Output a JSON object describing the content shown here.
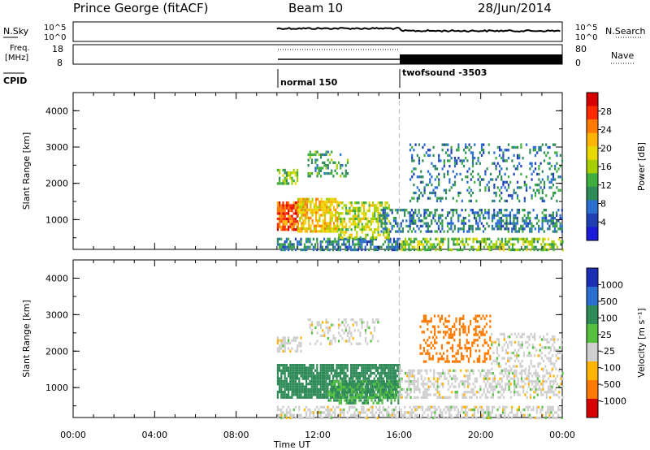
{
  "header": {
    "station": "Prince George (fitACF)",
    "beam": "Beam 10",
    "date": "28/Jun/2014"
  },
  "top_panels": {
    "nsky_label": "N.Sky",
    "nsearch_label": "N.Search",
    "noise_ticks_left": [
      "10^5",
      "10^0"
    ],
    "noise_ticks_right": [
      "10^5",
      "10^0"
    ],
    "freq_label": "Freq.",
    "freq_unit": "[MHz]",
    "freq_ticks": [
      "18",
      "8"
    ],
    "nave_label": "Nave",
    "nave_ticks": [
      "80",
      "0"
    ],
    "cpid_label": "CPID",
    "cpid_modes": [
      {
        "name": "normal 150",
        "start_hour": 10.0
      },
      {
        "name": "twofsound -3503",
        "start_hour": 16.0
      }
    ]
  },
  "colorbars": {
    "power": {
      "title": "Power [dB]",
      "ticks": [
        "28",
        "24",
        "20",
        "16",
        "12",
        "8",
        "4"
      ],
      "colors": [
        "#d60000",
        "#ff2a00",
        "#ff7a00",
        "#ffb400",
        "#e8d800",
        "#a8d000",
        "#3fae3f",
        "#2e8b57",
        "#2a6fd0",
        "#1f3fb3",
        "#1a1ad8"
      ]
    },
    "velocity": {
      "title": "Velocity [m s⁻¹]",
      "ticks": [
        "1000",
        "500",
        "100",
        "25",
        "-25",
        "-100",
        "-500",
        "-1000"
      ],
      "colors": [
        "#1c2fb4",
        "#2a6fd0",
        "#2e8b57",
        "#55c040",
        "#cfcfcf",
        "#ffb400",
        "#ff7a00",
        "#d60000"
      ]
    }
  },
  "chart_data": [
    {
      "type": "heatmap",
      "panel": "power",
      "ylabel": "Slant Range [km]",
      "xlabel": "",
      "ylim": [
        180,
        4500
      ],
      "xlim_hours": [
        0,
        24
      ],
      "yticks": [
        1000,
        2000,
        3000,
        4000
      ],
      "xticks_hours": [
        0,
        4,
        8,
        12,
        16,
        20,
        24
      ],
      "regions": [
        {
          "t0": 10.0,
          "t1": 16.0,
          "r0": 200,
          "r1": 500,
          "value": 8,
          "density": 0.6
        },
        {
          "t0": 16.0,
          "t1": 24.0,
          "r0": 200,
          "r1": 500,
          "value": 12,
          "density": 0.55
        },
        {
          "t0": 10.0,
          "t1": 11.0,
          "r0": 700,
          "r1": 1500,
          "value": 26,
          "density": 0.85
        },
        {
          "t0": 11.0,
          "t1": 13.0,
          "r0": 700,
          "r1": 1600,
          "value": 20,
          "density": 0.75
        },
        {
          "t0": 13.0,
          "t1": 15.5,
          "r0": 500,
          "r1": 1500,
          "value": 16,
          "density": 0.6
        },
        {
          "t0": 15.0,
          "t1": 24.0,
          "r0": 650,
          "r1": 1300,
          "value": 8,
          "density": 0.45
        },
        {
          "t0": 10.0,
          "t1": 11.0,
          "r0": 2000,
          "r1": 2400,
          "value": 12,
          "density": 0.6
        },
        {
          "t0": 11.5,
          "t1": 13.5,
          "r0": 2200,
          "r1": 2900,
          "value": 10,
          "density": 0.35
        },
        {
          "t0": 16.5,
          "t1": 24.0,
          "r0": 1500,
          "r1": 3100,
          "value": 6,
          "density": 0.22
        }
      ]
    },
    {
      "type": "heatmap",
      "panel": "velocity",
      "ylabel": "Slant Range [km]",
      "xlabel": "Time UT",
      "ylim": [
        180,
        4500
      ],
      "xlim_hours": [
        0,
        24
      ],
      "yticks": [
        1000,
        2000,
        3000,
        4000
      ],
      "xticks_hours": [
        0,
        4,
        8,
        12,
        16,
        20,
        24
      ],
      "xtick_labels": [
        "00:00",
        "04:00",
        "08:00",
        "12:00",
        "16:00",
        "20:00",
        "00:00"
      ],
      "regions": [
        {
          "t0": 10.0,
          "t1": 16.0,
          "r0": 700,
          "r1": 1650,
          "value": 200,
          "density": 0.85
        },
        {
          "t0": 12.5,
          "t1": 16.0,
          "r0": 600,
          "r1": 1200,
          "value": 100,
          "density": 0.6
        },
        {
          "t0": 10.0,
          "t1": 11.2,
          "r0": 2000,
          "r1": 2400,
          "value": 0,
          "density": 0.6
        },
        {
          "t0": 11.5,
          "t1": 15.0,
          "r0": 2200,
          "r1": 2900,
          "value": 0,
          "density": 0.3
        },
        {
          "t0": 16.0,
          "t1": 24.0,
          "r0": 700,
          "r1": 1500,
          "value": 0,
          "density": 0.45
        },
        {
          "t0": 10.0,
          "t1": 24.0,
          "r0": 200,
          "r1": 500,
          "value": 0,
          "density": 0.5
        },
        {
          "t0": 17.0,
          "t1": 20.5,
          "r0": 1700,
          "r1": 3000,
          "value": -150,
          "density": 0.35
        },
        {
          "t0": 20.5,
          "t1": 24.0,
          "r0": 1500,
          "r1": 2500,
          "value": 0,
          "density": 0.3
        }
      ]
    }
  ]
}
